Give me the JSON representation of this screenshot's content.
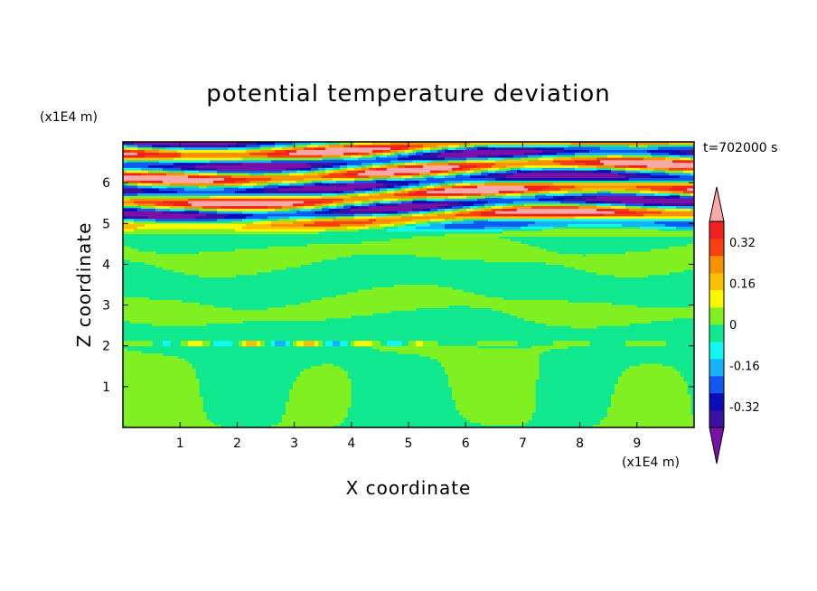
{
  "chart_data": {
    "type": "heatmap",
    "title": "potential temperature deviation",
    "xlabel": "X coordinate",
    "ylabel": "Z coordinate",
    "x_unit": "(x1E4 m)",
    "y_unit": "(x1E4 m)",
    "time_label": "t=702000 s",
    "xlim": [
      0,
      10
    ],
    "ylim": [
      0,
      7
    ],
    "x_ticks": [
      "1",
      "2",
      "3",
      "4",
      "5",
      "6",
      "7",
      "8",
      "9"
    ],
    "y_ticks": [
      "1",
      "2",
      "3",
      "4",
      "5",
      "6"
    ],
    "colorbar": {
      "tick_labels": [
        "0.32",
        "0.16",
        "0",
        "-0.16",
        "-0.32"
      ],
      "tick_values": [
        0.32,
        0.16,
        0,
        -0.16,
        -0.32
      ],
      "range": [
        -0.4,
        0.4
      ],
      "colors": [
        "#7b10a8",
        "#3a10a0",
        "#0c0cb8",
        "#1058f0",
        "#18b0f8",
        "#10f8f0",
        "#10e890",
        "#80f020",
        "#f8f800",
        "#f8c000",
        "#f89000",
        "#f84010",
        "#f02020",
        "#f8a8a8"
      ]
    },
    "field_description_zones": [
      {
        "z_range": [
          0,
          2
        ],
        "values": [
          0.0,
          -0.02
        ]
      },
      {
        "z_range": [
          2,
          4.7
        ],
        "values": [
          0.0,
          -0.02
        ]
      },
      {
        "z_range": [
          4.7,
          7
        ],
        "values": [
          -0.4,
          0.4
        ]
      }
    ]
  }
}
